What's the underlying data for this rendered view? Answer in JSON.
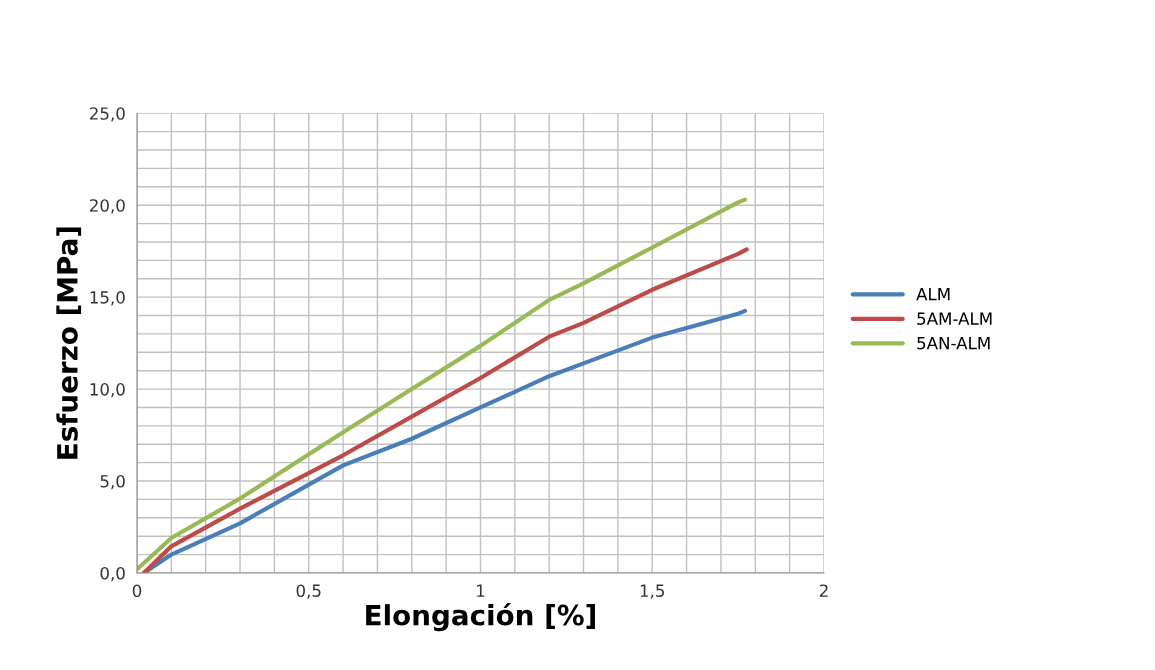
{
  "chart_data": {
    "type": "line",
    "xlabel": "Elongación [%]",
    "ylabel": "Esfuerzo [MPa]",
    "xlim": [
      0,
      2
    ],
    "ylim": [
      0,
      25
    ],
    "xticks": [
      {
        "value": 0,
        "label": "0"
      },
      {
        "value": 0.5,
        "label": "0,5"
      },
      {
        "value": 1,
        "label": "1"
      },
      {
        "value": 1.5,
        "label": "1,5"
      },
      {
        "value": 2,
        "label": "2"
      }
    ],
    "yticks": [
      {
        "value": 0,
        "label": "0,0"
      },
      {
        "value": 5,
        "label": "5,0"
      },
      {
        "value": 10,
        "label": "10,0"
      },
      {
        "value": 15,
        "label": "15,0"
      },
      {
        "value": 20,
        "label": "20,0"
      },
      {
        "value": 25,
        "label": "25,0"
      }
    ],
    "grid": true,
    "legend": "right",
    "marker": "none",
    "line_style": "solid",
    "series": [
      {
        "name": "ALM",
        "color": "#4a7ebb",
        "x": [
          0.02,
          0.1,
          0.3,
          0.6,
          0.8,
          1.0,
          1.2,
          1.3,
          1.5,
          1.75,
          1.77
        ],
        "values": [
          0.0,
          1.0,
          2.7,
          5.85,
          7.3,
          9.0,
          10.7,
          11.4,
          12.8,
          14.1,
          14.25
        ]
      },
      {
        "name": "5AM-ALM",
        "color": "#be4b48",
        "x": [
          0.02,
          0.1,
          0.3,
          0.6,
          0.8,
          1.0,
          1.2,
          1.3,
          1.5,
          1.75,
          1.775
        ],
        "values": [
          0.0,
          1.45,
          3.5,
          6.4,
          8.5,
          10.6,
          12.85,
          13.6,
          15.4,
          17.35,
          17.6
        ]
      },
      {
        "name": "5AN-ALM",
        "color": "#98b954",
        "x": [
          0.0,
          0.1,
          0.3,
          0.6,
          0.8,
          1.0,
          1.2,
          1.3,
          1.5,
          1.75,
          1.77
        ],
        "values": [
          0.2,
          1.9,
          4.05,
          7.65,
          10.0,
          12.35,
          14.85,
          15.75,
          17.7,
          20.15,
          20.3
        ]
      }
    ]
  }
}
